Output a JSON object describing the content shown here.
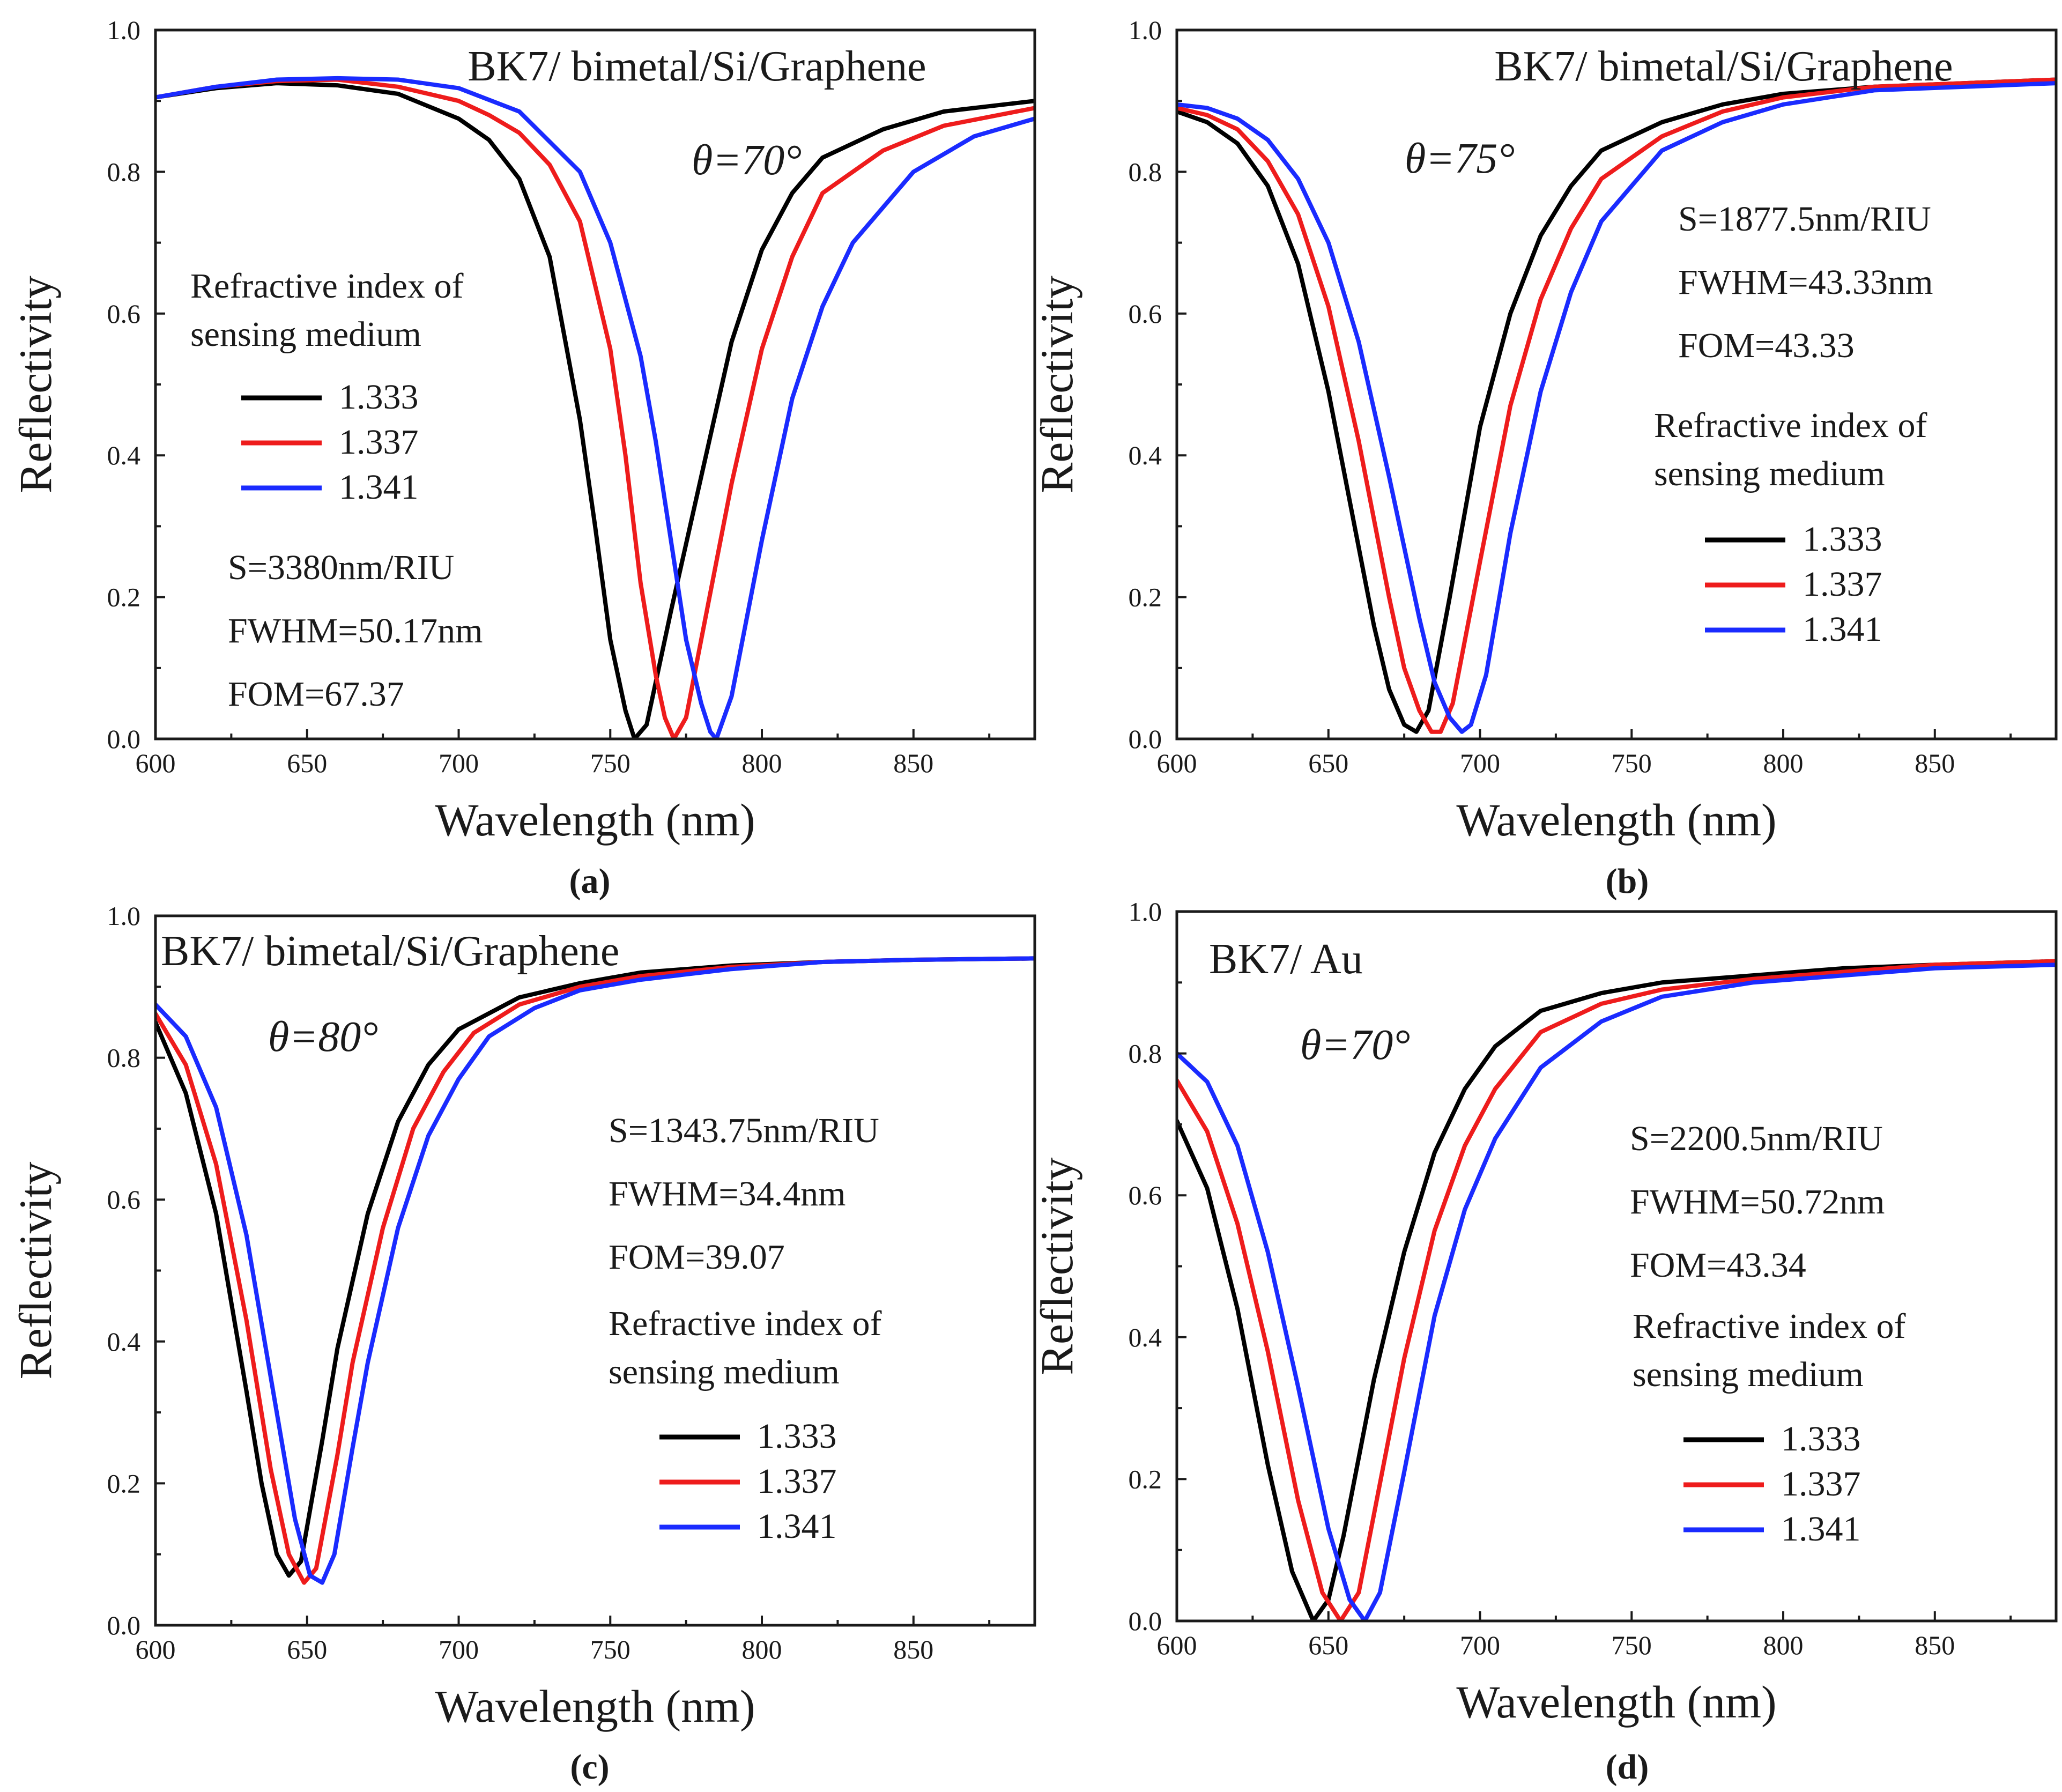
{
  "figure": {
    "colors": {
      "1.333": "#000000",
      "1.337": "#ee1c1c",
      "1.341": "#1a2bff"
    }
  },
  "chart_data": [
    {
      "panel_label": "(a)",
      "type": "line",
      "title": "BK7/ bimetal/Si/Graphene",
      "angle_label": "θ=70°",
      "xlabel": "Wavelength (nm)",
      "ylabel": "Reflectivity",
      "xlim": [
        600,
        890
      ],
      "ylim": [
        0,
        1.0
      ],
      "xticks": [
        "600",
        "650",
        "700",
        "750",
        "800",
        "850"
      ],
      "yticks": [
        "0.0",
        "0.2",
        "0.4",
        "0.6",
        "0.8",
        "1.0"
      ],
      "grid": false,
      "legend_title": [
        "Refractive index of",
        "sensing medium"
      ],
      "annotations": [
        "S=3380nm/RIU",
        "FWHM=50.17nm",
        "FOM=67.37"
      ],
      "series": [
        {
          "name": "1.333",
          "color": "#000000",
          "x": [
            600,
            620,
            640,
            660,
            680,
            700,
            710,
            720,
            730,
            740,
            745,
            750,
            755,
            758,
            762,
            770,
            780,
            790,
            800,
            810,
            820,
            840,
            860,
            890
          ],
          "y": [
            0.905,
            0.918,
            0.925,
            0.922,
            0.91,
            0.875,
            0.845,
            0.79,
            0.68,
            0.45,
            0.3,
            0.14,
            0.04,
            0.0,
            0.02,
            0.18,
            0.37,
            0.56,
            0.69,
            0.77,
            0.82,
            0.86,
            0.885,
            0.9
          ]
        },
        {
          "name": "1.337",
          "color": "#ee1c1c",
          "x": [
            600,
            620,
            640,
            660,
            680,
            700,
            710,
            720,
            730,
            740,
            750,
            755,
            760,
            765,
            768,
            771,
            775,
            780,
            790,
            800,
            810,
            820,
            840,
            860,
            890
          ],
          "y": [
            0.905,
            0.92,
            0.928,
            0.93,
            0.92,
            0.9,
            0.88,
            0.855,
            0.81,
            0.73,
            0.55,
            0.4,
            0.22,
            0.09,
            0.03,
            0.0,
            0.03,
            0.14,
            0.36,
            0.55,
            0.68,
            0.77,
            0.83,
            0.865,
            0.89
          ]
        },
        {
          "name": "1.341",
          "color": "#1a2bff",
          "x": [
            600,
            620,
            640,
            660,
            680,
            700,
            720,
            740,
            750,
            760,
            765,
            770,
            775,
            780,
            783,
            785,
            790,
            800,
            810,
            820,
            830,
            850,
            870,
            890
          ],
          "y": [
            0.905,
            0.92,
            0.93,
            0.932,
            0.93,
            0.918,
            0.885,
            0.8,
            0.7,
            0.54,
            0.42,
            0.28,
            0.14,
            0.05,
            0.01,
            0.0,
            0.06,
            0.28,
            0.48,
            0.61,
            0.7,
            0.8,
            0.85,
            0.875
          ]
        }
      ]
    },
    {
      "panel_label": "(b)",
      "type": "line",
      "title": "BK7/ bimetal/Si/Graphene",
      "angle_label": "θ=75°",
      "xlabel": "Wavelength (nm)",
      "ylabel": "Reflectivity",
      "xlim": [
        600,
        890
      ],
      "ylim": [
        0,
        1.0
      ],
      "xticks": [
        "600",
        "650",
        "700",
        "750",
        "800",
        "850"
      ],
      "yticks": [
        "0.0",
        "0.2",
        "0.4",
        "0.6",
        "0.8",
        "1.0"
      ],
      "grid": false,
      "annotations": [
        "S=1877.5nm/RIU",
        "FWHM=43.33nm",
        "FOM=43.33"
      ],
      "legend_title": [
        "Refractive index of",
        "sensing medium"
      ],
      "series": [
        {
          "name": "1.333",
          "color": "#000000",
          "x": [
            600,
            610,
            620,
            630,
            640,
            650,
            660,
            665,
            670,
            675,
            679,
            683,
            690,
            700,
            710,
            720,
            730,
            740,
            760,
            780,
            800,
            830,
            860,
            890
          ],
          "y": [
            0.885,
            0.87,
            0.84,
            0.78,
            0.67,
            0.49,
            0.27,
            0.16,
            0.07,
            0.02,
            0.01,
            0.04,
            0.2,
            0.44,
            0.6,
            0.71,
            0.78,
            0.83,
            0.87,
            0.895,
            0.91,
            0.92,
            0.925,
            0.93
          ]
        },
        {
          "name": "1.337",
          "color": "#ee1c1c",
          "x": [
            600,
            610,
            620,
            630,
            640,
            650,
            660,
            670,
            675,
            680,
            684,
            687,
            691,
            700,
            710,
            720,
            730,
            740,
            760,
            780,
            800,
            830,
            860,
            890
          ],
          "y": [
            0.89,
            0.88,
            0.86,
            0.815,
            0.74,
            0.61,
            0.42,
            0.2,
            0.1,
            0.04,
            0.01,
            0.01,
            0.05,
            0.25,
            0.47,
            0.62,
            0.72,
            0.79,
            0.85,
            0.885,
            0.905,
            0.92,
            0.925,
            0.93
          ]
        },
        {
          "name": "1.341",
          "color": "#1a2bff",
          "x": [
            600,
            610,
            620,
            630,
            640,
            650,
            660,
            670,
            680,
            685,
            690,
            694,
            697,
            702,
            710,
            720,
            730,
            740,
            760,
            780,
            800,
            830,
            860,
            890
          ],
          "y": [
            0.895,
            0.89,
            0.875,
            0.845,
            0.79,
            0.7,
            0.56,
            0.37,
            0.17,
            0.08,
            0.03,
            0.01,
            0.02,
            0.09,
            0.29,
            0.49,
            0.63,
            0.73,
            0.83,
            0.87,
            0.895,
            0.915,
            0.92,
            0.925
          ]
        }
      ]
    },
    {
      "panel_label": "(c)",
      "type": "line",
      "title": "BK7/ bimetal/Si/Graphene",
      "angle_label": "θ=80°",
      "xlabel": "Wavelength (nm)",
      "ylabel": "Reflectivity",
      "xlim": [
        600,
        890
      ],
      "ylim": [
        0,
        1.0
      ],
      "xticks": [
        "600",
        "650",
        "700",
        "750",
        "800",
        "850"
      ],
      "yticks": [
        "0.0",
        "0.2",
        "0.4",
        "0.6",
        "0.8",
        "1.0"
      ],
      "grid": false,
      "annotations": [
        "S=1343.75nm/RIU",
        "FWHM=34.4nm",
        "FOM=39.07"
      ],
      "legend_title": [
        "Refractive index of",
        "sensing medium"
      ],
      "series": [
        {
          "name": "1.333",
          "color": "#000000",
          "x": [
            600,
            610,
            620,
            630,
            635,
            640,
            644,
            648,
            655,
            660,
            670,
            680,
            690,
            700,
            720,
            740,
            760,
            790,
            820,
            850,
            890
          ],
          "y": [
            0.85,
            0.75,
            0.58,
            0.33,
            0.2,
            0.1,
            0.07,
            0.09,
            0.26,
            0.39,
            0.58,
            0.71,
            0.79,
            0.84,
            0.885,
            0.905,
            0.92,
            0.93,
            0.935,
            0.938,
            0.94
          ]
        },
        {
          "name": "1.337",
          "color": "#ee1c1c",
          "x": [
            600,
            610,
            620,
            630,
            638,
            644,
            649,
            653,
            660,
            665,
            675,
            685,
            695,
            705,
            720,
            740,
            760,
            790,
            820,
            850,
            890
          ],
          "y": [
            0.862,
            0.79,
            0.65,
            0.43,
            0.22,
            0.1,
            0.06,
            0.08,
            0.24,
            0.37,
            0.56,
            0.7,
            0.78,
            0.835,
            0.875,
            0.9,
            0.915,
            0.928,
            0.935,
            0.938,
            0.94
          ]
        },
        {
          "name": "1.341",
          "color": "#1a2bff",
          "x": [
            600,
            610,
            620,
            630,
            640,
            646,
            651,
            655,
            659,
            665,
            670,
            680,
            690,
            700,
            710,
            725,
            740,
            760,
            790,
            820,
            850,
            890
          ],
          "y": [
            0.875,
            0.83,
            0.73,
            0.55,
            0.3,
            0.15,
            0.07,
            0.06,
            0.1,
            0.25,
            0.37,
            0.56,
            0.69,
            0.77,
            0.83,
            0.87,
            0.895,
            0.91,
            0.925,
            0.935,
            0.938,
            0.94
          ]
        }
      ]
    },
    {
      "panel_label": "(d)",
      "type": "line",
      "title": "BK7/ Au",
      "angle_label": "θ=70°",
      "xlabel": "Wavelength (nm)",
      "ylabel": "Reflectivity",
      "xlim": [
        600,
        890
      ],
      "ylim": [
        0,
        1.0
      ],
      "xticks": [
        "600",
        "650",
        "700",
        "750",
        "800",
        "850"
      ],
      "yticks": [
        "0.0",
        "0.2",
        "0.4",
        "0.6",
        "0.8",
        "1.0"
      ],
      "grid": false,
      "annotations": [
        "S=2200.5nm/RIU",
        "FWHM=50.72nm",
        "FOM=43.34"
      ],
      "legend_title": [
        "Refractive index of",
        "sensing medium"
      ],
      "series": [
        {
          "name": "1.333",
          "color": "#000000",
          "x": [
            600,
            610,
            620,
            630,
            638,
            645,
            650,
            655,
            665,
            675,
            685,
            695,
            705,
            720,
            740,
            760,
            790,
            820,
            850,
            890
          ],
          "y": [
            0.705,
            0.61,
            0.44,
            0.22,
            0.07,
            0.0,
            0.03,
            0.12,
            0.34,
            0.52,
            0.66,
            0.75,
            0.81,
            0.86,
            0.885,
            0.9,
            0.91,
            0.92,
            0.925,
            0.93
          ]
        },
        {
          "name": "1.337",
          "color": "#ee1c1c",
          "x": [
            600,
            610,
            620,
            630,
            640,
            648,
            654,
            660,
            665,
            675,
            685,
            695,
            705,
            720,
            740,
            760,
            790,
            820,
            850,
            890
          ],
          "y": [
            0.762,
            0.69,
            0.56,
            0.38,
            0.17,
            0.04,
            0.0,
            0.04,
            0.15,
            0.37,
            0.55,
            0.67,
            0.75,
            0.83,
            0.87,
            0.89,
            0.905,
            0.915,
            0.925,
            0.93
          ]
        },
        {
          "name": "1.341",
          "color": "#1a2bff",
          "x": [
            600,
            610,
            620,
            630,
            640,
            650,
            657,
            662,
            667,
            675,
            685,
            695,
            705,
            720,
            740,
            760,
            790,
            820,
            850,
            890
          ],
          "y": [
            0.8,
            0.76,
            0.67,
            0.52,
            0.33,
            0.13,
            0.03,
            0.0,
            0.04,
            0.21,
            0.43,
            0.58,
            0.68,
            0.78,
            0.845,
            0.88,
            0.9,
            0.91,
            0.92,
            0.925
          ]
        }
      ]
    }
  ]
}
